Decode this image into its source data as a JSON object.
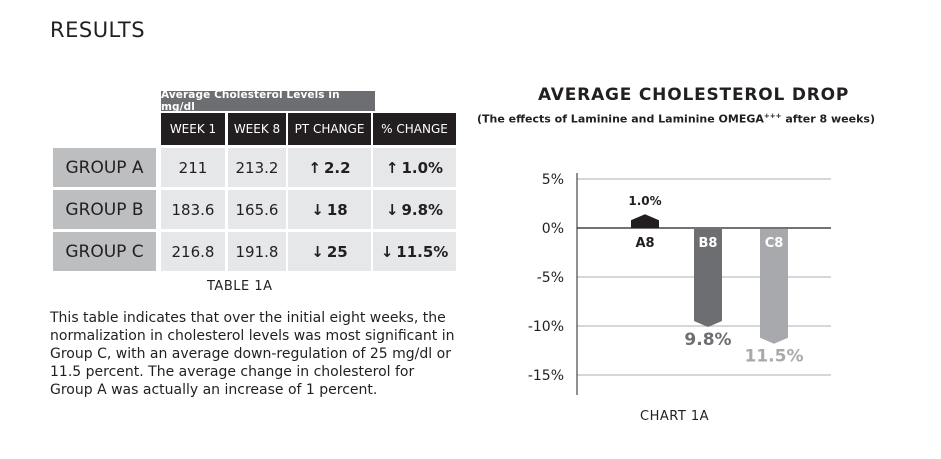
{
  "page": {
    "heading": "RESULTS"
  },
  "table": {
    "caption": "Average Cholesterol Levels in mg/dl",
    "headers": [
      "WEEK 1",
      "WEEK 8",
      "PT CHANGE",
      "% CHANGE"
    ],
    "rows": [
      {
        "group": "GROUP A",
        "week1": "211",
        "week8": "213.2",
        "pt_dir": "↑",
        "pt": "2.2",
        "pct_dir": "↑",
        "pct": "1.0%"
      },
      {
        "group": "GROUP B",
        "week1": "183.6",
        "week8": "165.6",
        "pt_dir": "↓",
        "pt": "18",
        "pct_dir": "↓",
        "pct": "9.8%"
      },
      {
        "group": "GROUP C",
        "week1": "216.8",
        "week8": "191.8",
        "pt_dir": "↓",
        "pt": "25",
        "pct_dir": "↓",
        "pct": "11.5%"
      }
    ],
    "label": "TABLE 1A"
  },
  "paragraph": "This table indicates that over the initial eight weeks, the normalization in cholesterol levels was most significant in Group C, with an average down-regulation of 25 mg/dl or 11.5 percent. The average change in cholesterol for Group A was actually an increase of 1 percent.",
  "chart_data": {
    "type": "bar",
    "title": "AVERAGE CHOLESTEROL DROP",
    "subtitle_main": "(The effects of Laminine and Laminine OMEGA",
    "subtitle_sup": "+++",
    "subtitle_end": " after 8 weeks)",
    "categories": [
      "A8",
      "B8",
      "C8"
    ],
    "values": [
      1.0,
      -9.8,
      -11.5
    ],
    "value_labels": [
      "1.0%",
      "9.8%",
      "11.5%"
    ],
    "colors": [
      "#231f20",
      "#6d6e71",
      "#a7a9ac"
    ],
    "label_colors": [
      "#231f20",
      "#6d6e71",
      "#a7a9ac"
    ],
    "yticks": [
      "5%",
      "0%",
      "-5%",
      "-10%",
      "-15%"
    ],
    "ytick_values": [
      5,
      0,
      -5,
      -10,
      -15
    ],
    "ylim": [
      -17,
      7
    ],
    "grid": true,
    "label": "CHART 1A"
  }
}
